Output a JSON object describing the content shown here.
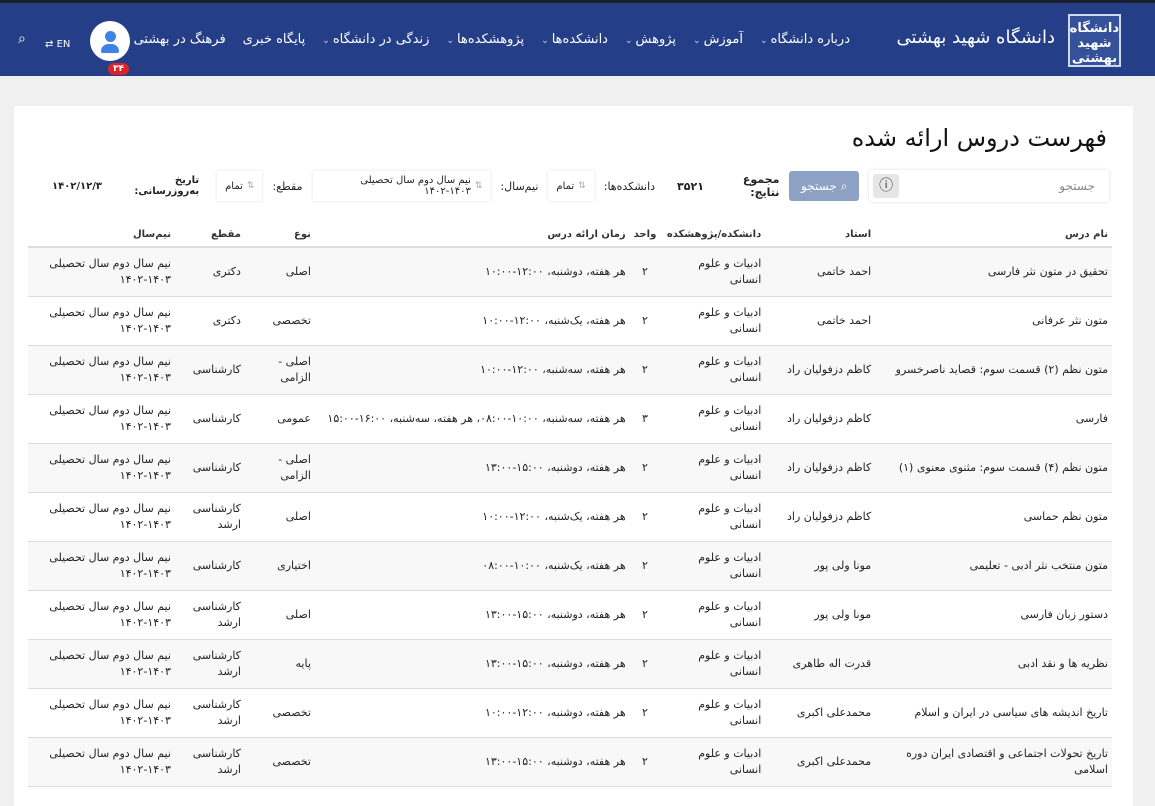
{
  "header": {
    "logo_text": "دانشگاه شهید بهشتی",
    "brand": "دانشگاه شهید بهشتی",
    "menu": [
      "درباره دانشگاه",
      "آموزش",
      "پژوهش",
      "دانشکده‌ها",
      "پژوهشکده‌ها",
      "زندگی در دانشگاه",
      "پایگاه خبری",
      "فرهنگ در بهشتی"
    ],
    "menu_has_dropdown": [
      true,
      true,
      true,
      true,
      true,
      true,
      false,
      true
    ],
    "notification_count": "۳۴",
    "lang": "EN"
  },
  "page": {
    "title": "فهرست دروس ارائه شده"
  },
  "filters": {
    "search_placeholder": "جستجو",
    "search_button": "جستجو",
    "total_label": "مجموع نتایج:",
    "total": "۳۵۲۱",
    "faculty_label": "دانشکده‌ها:",
    "faculty_value": "تمام",
    "semester_label": "نیم‌سال:",
    "semester_value": "نیم سال دوم سال تحصیلی ۱۴۰۳-۱۴۰۲",
    "level_label": "مقطع:",
    "level_value": "تمام",
    "updated_label": "تاریخ به‌روزرسانی:",
    "updated_value": "۱۴۰۲/۱۲/۳"
  },
  "table": {
    "headers": [
      "نام درس",
      "استاد",
      "دانشکده/پژوهشکده",
      "واحد",
      "زمان ارائه درس",
      "نوع",
      "مقطع",
      "نیم‌سال"
    ],
    "rows": [
      [
        "تحقیق در متون نثر فارسی",
        "احمد خاتمی",
        "ادبیات و علوم انسانی",
        "۲",
        "هر هفته، دوشنبه، ۱۲:۰۰-۱۰:۰۰",
        "اصلی",
        "دکتری",
        "نیم سال دوم سال تحصیلی ۱۴۰۳-۱۴۰۲"
      ],
      [
        "متون نثر عرفانی",
        "احمد خاتمی",
        "ادبیات و علوم انسانی",
        "۲",
        "هر هفته، یک‌شنبه، ۱۲:۰۰-۱۰:۰۰",
        "تخصصی",
        "دکتری",
        "نیم سال دوم سال تحصیلی ۱۴۰۳-۱۴۰۲"
      ],
      [
        "متون نظم (۲) قسمت سوم: قصاید ناصرخسرو",
        "کاظم دزفولیان راد",
        "ادبیات و علوم انسانی",
        "۲",
        "هر هفته، سه‌شنبه، ۱۲:۰۰-۱۰:۰۰",
        "اصلی - الزامی",
        "کارشناسی",
        "نیم سال دوم سال تحصیلی ۱۴۰۳-۱۴۰۲"
      ],
      [
        "فارسی",
        "کاظم دزفولیان راد",
        "ادبیات و علوم انسانی",
        "۳",
        "هر هفته، سه‌شنبه، ۱۰:۰۰-۰۸:۰۰، هر هفته، سه‌شنبه، ۱۶:۰۰-۱۵:۰۰",
        "عمومی",
        "کارشناسی",
        "نیم سال دوم سال تحصیلی ۱۴۰۳-۱۴۰۲"
      ],
      [
        "متون نظم (۴) قسمت سوم: مثنوی معنوی (۱)",
        "کاظم دزفولیان راد",
        "ادبیات و علوم انسانی",
        "۲",
        "هر هفته، دوشنبه، ۱۵:۰۰-۱۳:۰۰",
        "اصلی - الزامی",
        "کارشناسی",
        "نیم سال دوم سال تحصیلی ۱۴۰۳-۱۴۰۲"
      ],
      [
        "متون نظم حماسی",
        "کاظم دزفولیان راد",
        "ادبیات و علوم انسانی",
        "۲",
        "هر هفته، یک‌شنبه، ۱۲:۰۰-۱۰:۰۰",
        "اصلی",
        "کارشناسی ارشد",
        "نیم سال دوم سال تحصیلی ۱۴۰۳-۱۴۰۲"
      ],
      [
        "متون منتخب نثر ادبی - تعلیمی",
        "مونا ولی پور",
        "ادبیات و علوم انسانی",
        "۲",
        "هر هفته، یک‌شنبه، ۱۰:۰۰-۰۸:۰۰",
        "اختیاری",
        "کارشناسی",
        "نیم سال دوم سال تحصیلی ۱۴۰۳-۱۴۰۲"
      ],
      [
        "دستور زبان فارسی",
        "مونا ولی پور",
        "ادبیات و علوم انسانی",
        "۲",
        "هر هفته، دوشنبه، ۱۵:۰۰-۱۳:۰۰",
        "اصلی",
        "کارشناسی ارشد",
        "نیم سال دوم سال تحصیلی ۱۴۰۳-۱۴۰۲"
      ],
      [
        "نظریه ها و نقد ادبی",
        "قدرت اله طاهری",
        "ادبیات و علوم انسانی",
        "۲",
        "هر هفته، دوشنبه، ۱۵:۰۰-۱۳:۰۰",
        "پایه",
        "کارشناسی ارشد",
        "نیم سال دوم سال تحصیلی ۱۴۰۳-۱۴۰۲"
      ],
      [
        "تاریخ اندیشه های سیاسی در ایران و اسلام",
        "محمدعلی اکبری",
        "ادبیات و علوم انسانی",
        "۲",
        "هر هفته، دوشنبه، ۱۲:۰۰-۱۰:۰۰",
        "تخصصی",
        "کارشناسی ارشد",
        "نیم سال دوم سال تحصیلی ۱۴۰۳-۱۴۰۲"
      ],
      [
        "تاریخ تحولات اجتماعی و اقتصادی ایران دوره اسلامی",
        "محمدعلی اکبری",
        "ادبیات و علوم انسانی",
        "۲",
        "هر هفته، دوشنبه، ۱۵:۰۰-۱۳:۰۰",
        "تخصصی",
        "کارشناسی ارشد",
        "نیم سال دوم سال تحصیلی ۱۴۰۳-۱۴۰۲"
      ]
    ]
  }
}
